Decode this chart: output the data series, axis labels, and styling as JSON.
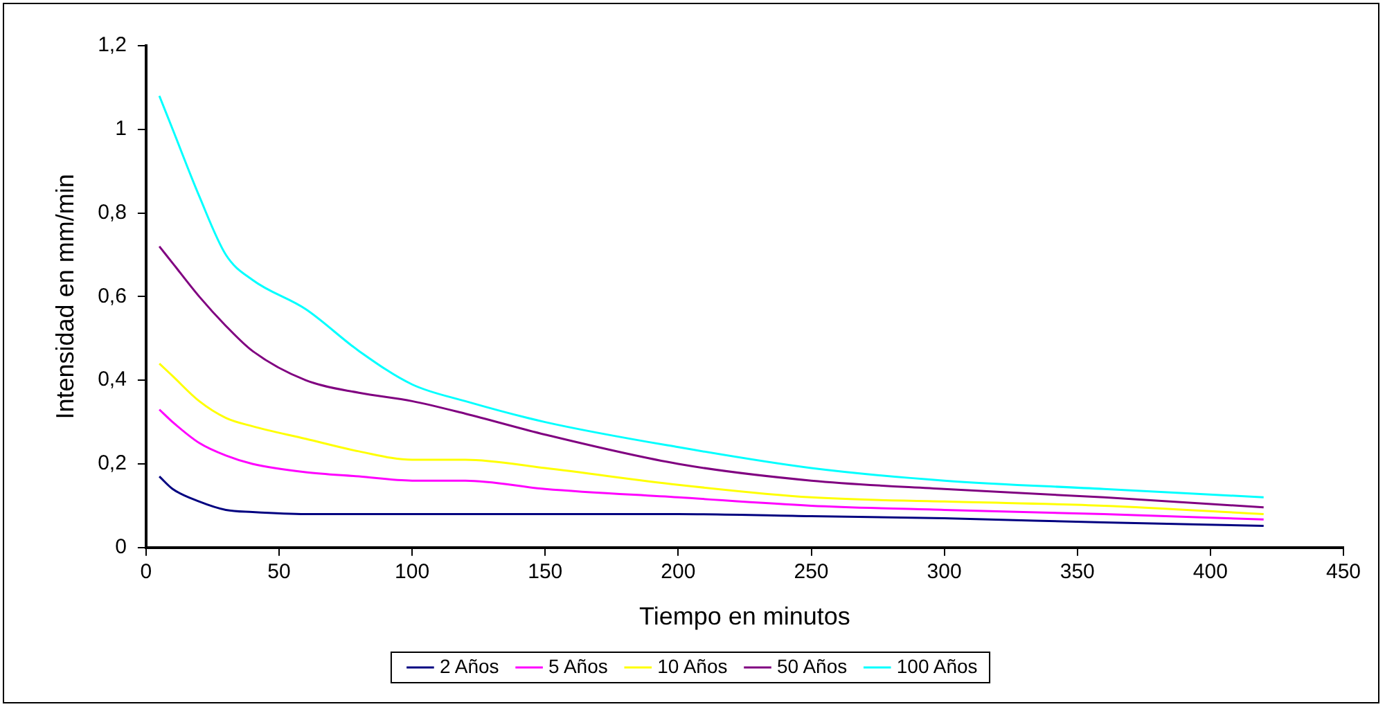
{
  "chart_data": {
    "type": "line",
    "xlabel": "Tiempo en minutos",
    "ylabel": "Intensidad en mm/min",
    "x": [
      5,
      10,
      20,
      30,
      40,
      60,
      80,
      100,
      120,
      150,
      200,
      250,
      300,
      360,
      420
    ],
    "series": [
      {
        "name": "2 Años",
        "color": "#000080",
        "values": [
          0.17,
          0.14,
          0.11,
          0.09,
          0.085,
          0.08,
          0.08,
          0.08,
          0.08,
          0.08,
          0.08,
          0.075,
          0.07,
          0.06,
          0.052
        ]
      },
      {
        "name": "5 Años",
        "color": "#ff00ff",
        "values": [
          0.33,
          0.3,
          0.25,
          0.22,
          0.2,
          0.18,
          0.17,
          0.16,
          0.16,
          0.14,
          0.12,
          0.1,
          0.09,
          0.08,
          0.067
        ]
      },
      {
        "name": "10 Años",
        "color": "#ffff00",
        "values": [
          0.44,
          0.41,
          0.35,
          0.31,
          0.29,
          0.26,
          0.23,
          0.21,
          0.21,
          0.19,
          0.15,
          0.12,
          0.11,
          0.1,
          0.08
        ]
      },
      {
        "name": "50 Años",
        "color": "#800080",
        "values": [
          0.72,
          0.68,
          0.6,
          0.53,
          0.47,
          0.4,
          0.37,
          0.35,
          0.32,
          0.27,
          0.2,
          0.16,
          0.14,
          0.12,
          0.096
        ]
      },
      {
        "name": "100 Años",
        "color": "#00ffff",
        "values": [
          1.08,
          1.0,
          0.84,
          0.7,
          0.64,
          0.57,
          0.47,
          0.39,
          0.35,
          0.3,
          0.24,
          0.19,
          0.16,
          0.14,
          0.12
        ]
      }
    ],
    "xlim": [
      0,
      450
    ],
    "xticks": [
      0,
      50,
      100,
      150,
      200,
      250,
      300,
      350,
      400,
      450
    ],
    "ylim": [
      0,
      1.2
    ],
    "yticks": [
      0,
      {
        "value": 0.2,
        "label": "0,2"
      },
      {
        "value": 0.4,
        "label": "0,4"
      },
      {
        "value": 0.6,
        "label": "0,6"
      },
      {
        "value": 0.8,
        "label": "0,8"
      },
      1,
      {
        "value": 1.2,
        "label": "1,2"
      }
    ],
    "grid": false,
    "legend": "bottom",
    "marker": "none",
    "line_style": "solid"
  }
}
